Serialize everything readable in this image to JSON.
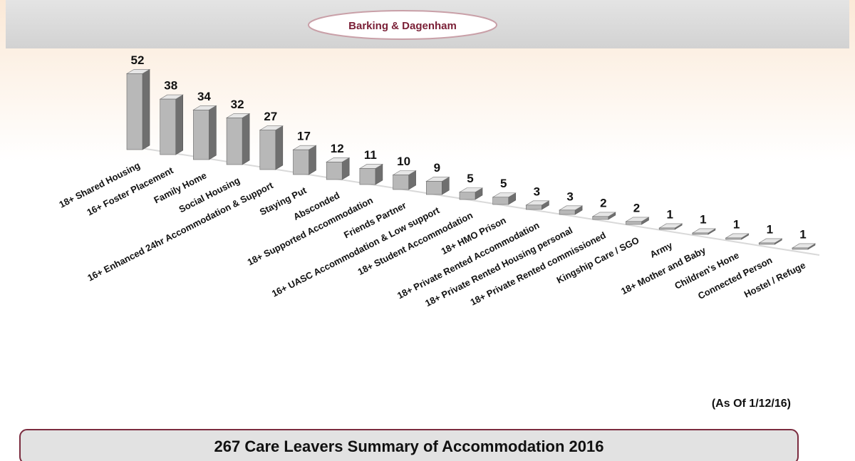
{
  "header": {
    "logo": "Barking & Dagenham"
  },
  "chart_data": {
    "type": "bar3d",
    "categories": [
      "18+ Shared Housing",
      "16+ Foster Placement",
      "Family Home",
      "Social Housing",
      "16+ Enhanced 24hr Accommodation & Support",
      "Staying Put",
      "Absconded",
      "18+ Supported Accommodation",
      "Friends Partner",
      "16+ UASC Accommodation & Low support",
      "18+ Student Accommodation",
      "18+ HMO Prison",
      "18+ Private Rented Accommodation",
      "18+ Private Rented Housing personal",
      "18+ Private Rented commissioned",
      "Kingship Care / SGO",
      "Army",
      "18+ Mother and Baby",
      "Children's Hone",
      "Connected Person",
      "Hostel / Refuge"
    ],
    "values": [
      52,
      38,
      34,
      32,
      27,
      17,
      12,
      11,
      10,
      9,
      5,
      5,
      3,
      3,
      2,
      2,
      1,
      1,
      1,
      1,
      1
    ],
    "color": "#b8b8b8",
    "annotation": "(As Of 1/12/16)",
    "title": "267 Care Leavers Summary of Accommodation 2016"
  }
}
